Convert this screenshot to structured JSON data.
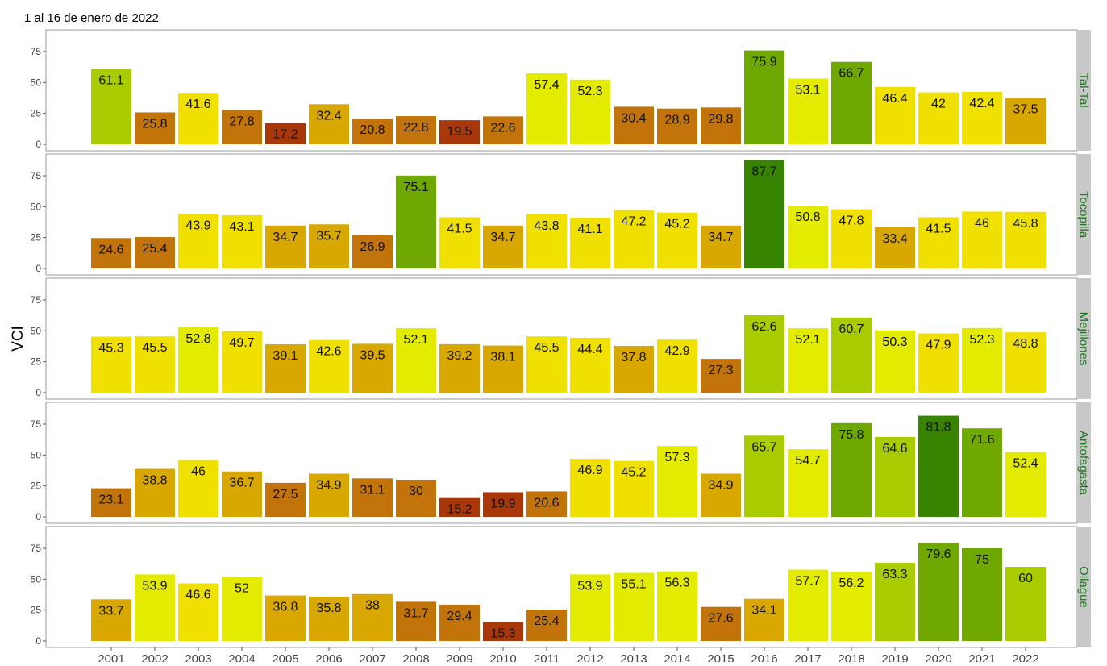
{
  "chart_data": {
    "type": "bar",
    "title": "1 al 16 de enero de 2022",
    "ylabel": "VCI",
    "xlabel": "",
    "ylim": [
      0,
      90
    ],
    "yticks": [
      0,
      25,
      50,
      75
    ],
    "grid": false,
    "categories": [
      "2001",
      "2002",
      "2003",
      "2004",
      "2005",
      "2006",
      "2007",
      "2008",
      "2009",
      "2010",
      "2011",
      "2012",
      "2013",
      "2014",
      "2015",
      "2016",
      "2017",
      "2018",
      "2019",
      "2020",
      "2021",
      "2022"
    ],
    "color_scale": [
      {
        "max": 20,
        "color": "#a8380a"
      },
      {
        "max": 32,
        "color": "#c2740a"
      },
      {
        "max": 40,
        "color": "#d9a800"
      },
      {
        "max": 50,
        "color": "#f0e000"
      },
      {
        "max": 58,
        "color": "#e3ec00"
      },
      {
        "max": 66,
        "color": "#a8cc00"
      },
      {
        "max": 80,
        "color": "#6fa800"
      },
      {
        "max": 100,
        "color": "#388400"
      }
    ],
    "panels": [
      {
        "name": "Tal-Tal",
        "values": [
          61.1,
          25.8,
          41.6,
          27.8,
          17.2,
          32.4,
          20.8,
          22.8,
          19.5,
          22.6,
          57.4,
          52.3,
          30.4,
          28.9,
          29.8,
          75.9,
          53.1,
          66.7,
          46.4,
          42,
          42.4,
          37.5
        ]
      },
      {
        "name": "Tocopilla",
        "values": [
          24.6,
          25.4,
          43.9,
          43.1,
          34.7,
          35.7,
          26.9,
          75.1,
          41.5,
          34.7,
          43.8,
          41.1,
          47.2,
          45.2,
          34.7,
          87.7,
          50.8,
          47.8,
          33.4,
          41.5,
          46,
          45.8
        ]
      },
      {
        "name": "Mejillones",
        "values": [
          45.3,
          45.5,
          52.8,
          49.7,
          39.1,
          42.6,
          39.5,
          52.1,
          39.2,
          38.1,
          45.5,
          44.4,
          37.8,
          42.9,
          27.3,
          62.6,
          52.1,
          60.7,
          50.3,
          47.9,
          52.3,
          48.8
        ]
      },
      {
        "name": "Antofagasta",
        "values": [
          23.1,
          38.8,
          46,
          36.7,
          27.5,
          34.9,
          31.1,
          30,
          15.2,
          19.9,
          20.6,
          46.9,
          45.2,
          57.3,
          34.9,
          65.7,
          54.7,
          75.8,
          64.6,
          81.8,
          71.6,
          52.4
        ]
      },
      {
        "name": "Ollague",
        "values": [
          33.7,
          53.9,
          46.6,
          52,
          36.8,
          35.8,
          38,
          31.7,
          29.4,
          15.3,
          25.4,
          53.9,
          55.1,
          56.3,
          27.6,
          34.1,
          57.7,
          56.2,
          63.3,
          79.6,
          75,
          60
        ]
      }
    ],
    "strip_text_color": "#1a7a1a",
    "strip_bg_color": "#c8c8c8"
  }
}
